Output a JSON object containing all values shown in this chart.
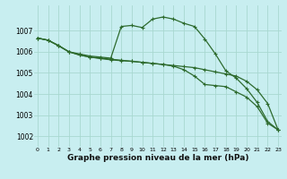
{
  "background_color": "#c8eef0",
  "grid_color": "#a8d8d0",
  "line_color": "#2d6a2d",
  "xlabel": "Graphe pression niveau de la mer (hPa)",
  "ylim": [
    1001.5,
    1008.2
  ],
  "xlim": [
    -0.3,
    23.3
  ],
  "yticks": [
    1002,
    1003,
    1004,
    1005,
    1006,
    1007
  ],
  "xtick_labels": [
    "0",
    "1",
    "2",
    "3",
    "4",
    "5",
    "6",
    "7",
    "8",
    "9",
    "10",
    "11",
    "12",
    "13",
    "14",
    "15",
    "16",
    "17",
    "18",
    "19",
    "20",
    "21",
    "22",
    "23"
  ],
  "s1_x": [
    0,
    1,
    2,
    3,
    4,
    5,
    6,
    7,
    8,
    9,
    10,
    11,
    12,
    13,
    14,
    15,
    16,
    17,
    18,
    19,
    20,
    21,
    22,
    23
  ],
  "s1_y": [
    1006.65,
    1006.55,
    1006.3,
    1006.0,
    1005.9,
    1005.8,
    1005.75,
    1005.7,
    1007.2,
    1007.25,
    1007.15,
    1007.55,
    1007.65,
    1007.55,
    1007.35,
    1007.2,
    1006.6,
    1005.9,
    1005.1,
    1004.75,
    1004.25,
    1003.6,
    1002.7,
    1002.3
  ],
  "s2_x": [
    0,
    1,
    2,
    3,
    4,
    5,
    6,
    7,
    8,
    9,
    10,
    11,
    12,
    13,
    14,
    15,
    16,
    17,
    18,
    19,
    20,
    21,
    22,
    23
  ],
  "s2_y": [
    1006.65,
    1006.55,
    1006.3,
    1006.0,
    1005.85,
    1005.75,
    1005.7,
    1005.65,
    1005.6,
    1005.55,
    1005.5,
    1005.45,
    1005.4,
    1005.35,
    1005.3,
    1005.25,
    1005.15,
    1005.05,
    1004.95,
    1004.85,
    1004.6,
    1004.2,
    1003.55,
    1002.3
  ],
  "s3_x": [
    0,
    1,
    2,
    3,
    4,
    5,
    6,
    7,
    8,
    9,
    10,
    11,
    12,
    13,
    14,
    15,
    16,
    17,
    18,
    19,
    20,
    21,
    22,
    23
  ],
  "s3_y": [
    1006.65,
    1006.55,
    1006.28,
    1006.0,
    1005.85,
    1005.75,
    1005.68,
    1005.62,
    1005.58,
    1005.55,
    1005.5,
    1005.45,
    1005.4,
    1005.32,
    1005.15,
    1004.85,
    1004.45,
    1004.4,
    1004.35,
    1004.1,
    1003.85,
    1003.4,
    1002.62,
    1002.3
  ]
}
